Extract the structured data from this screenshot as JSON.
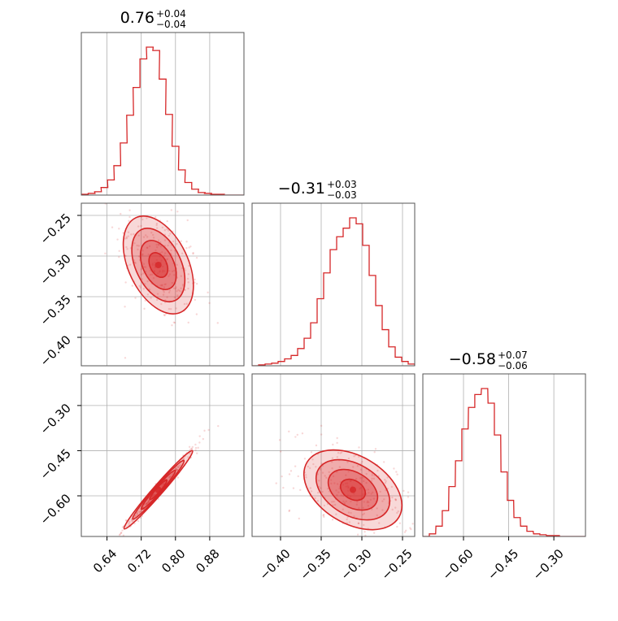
{
  "chart_data": {
    "type": "corner",
    "parameters": 3,
    "color": "#d62728",
    "grid": true,
    "titles": [
      {
        "median": "0.76",
        "plus": "+0.04",
        "minus": "−0.04"
      },
      {
        "median": "−0.31",
        "plus": "+0.03",
        "minus": "−0.03"
      },
      {
        "median": "−0.58",
        "plus": "+0.07",
        "minus": "−0.06"
      }
    ],
    "ranges": [
      [
        0.58,
        0.96
      ],
      [
        -0.435,
        -0.235
      ],
      [
        -0.735,
        -0.195
      ]
    ],
    "ticks": [
      [
        0.64,
        0.72,
        0.8,
        0.88
      ],
      [
        -0.4,
        -0.35,
        -0.3,
        -0.25
      ],
      [
        -0.6,
        -0.45,
        -0.3
      ]
    ],
    "tick_labels": [
      [
        "0.64",
        "0.72",
        "0.80",
        "0.88"
      ],
      [
        "−0.40",
        "−0.35",
        "−0.30",
        "−0.25"
      ],
      [
        "−0.60",
        "−0.45",
        "−0.30"
      ]
    ],
    "hist_bin_centers": [
      [
        0.588,
        0.604,
        0.619,
        0.634,
        0.649,
        0.664,
        0.679,
        0.694,
        0.709,
        0.725,
        0.74,
        0.755,
        0.77,
        0.785,
        0.8,
        0.815,
        0.83,
        0.846,
        0.861,
        0.876,
        0.891,
        0.906,
        0.921,
        0.936,
        0.951
      ],
      [
        -0.431,
        -0.423,
        -0.415,
        -0.407,
        -0.399,
        -0.391,
        -0.383,
        -0.375,
        -0.367,
        -0.359,
        -0.351,
        -0.343,
        -0.335,
        -0.327,
        -0.319,
        -0.311,
        -0.303,
        -0.295,
        -0.287,
        -0.279,
        -0.271,
        -0.263,
        -0.255,
        -0.247,
        -0.239
      ],
      [
        -0.724,
        -0.703,
        -0.681,
        -0.66,
        -0.638,
        -0.616,
        -0.595,
        -0.573,
        -0.552,
        -0.53,
        -0.508,
        -0.487,
        -0.465,
        -0.444,
        -0.422,
        -0.4,
        -0.379,
        -0.357,
        -0.336,
        -0.314,
        -0.292,
        -0.271,
        -0.249,
        -0.228,
        -0.206
      ]
    ],
    "hist_counts": [
      [
        1,
        2,
        4,
        9,
        18,
        35,
        62,
        95,
        128,
        162,
        176,
        172,
        138,
        96,
        58,
        30,
        15,
        7,
        3,
        2,
        1,
        1,
        0,
        0,
        0
      ],
      [
        0,
        1,
        2,
        3,
        5,
        8,
        12,
        20,
        32,
        50,
        78,
        108,
        135,
        150,
        160,
        172,
        165,
        140,
        105,
        70,
        42,
        22,
        10,
        5,
        2
      ],
      [
        0,
        3,
        12,
        30,
        58,
        88,
        125,
        150,
        165,
        172,
        155,
        118,
        75,
        42,
        22,
        12,
        6,
        3,
        2,
        1,
        1,
        0,
        0,
        0,
        0
      ]
    ],
    "joint": [
      {
        "x": 0,
        "y": 1,
        "center": [
          0.76,
          -0.311
        ],
        "sd": [
          0.04,
          0.03
        ],
        "rho": -0.45
      },
      {
        "x": 0,
        "y": 2,
        "center": [
          0.76,
          -0.58
        ],
        "sd": [
          0.04,
          0.065
        ],
        "rho": 0.99
      },
      {
        "x": 1,
        "y": 2,
        "center": [
          -0.311,
          -0.58
        ],
        "sd": [
          0.03,
          0.065
        ],
        "rho": -0.42
      }
    ]
  }
}
